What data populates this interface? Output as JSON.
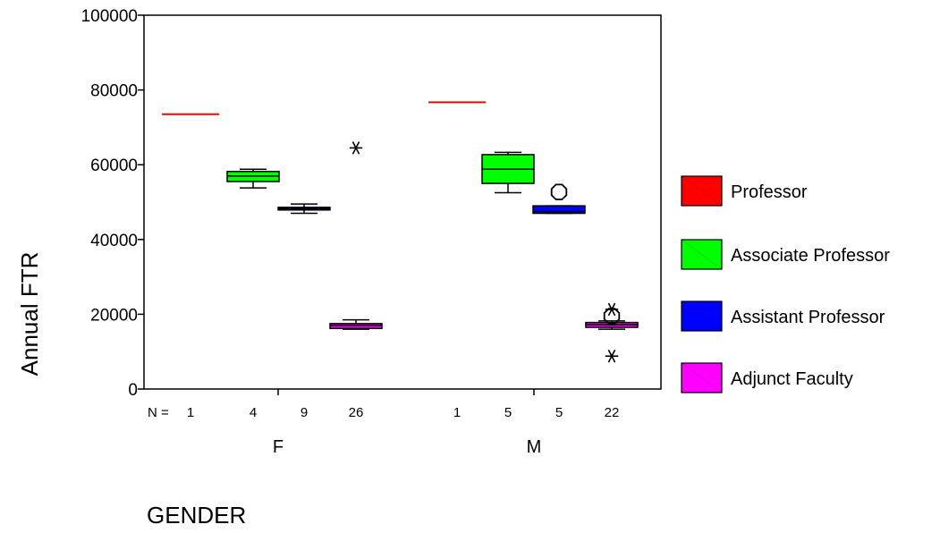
{
  "chart_data": {
    "type": "boxplot",
    "title": "",
    "xlabel": "GENDER",
    "ylabel": "Annual FTR",
    "ylim": [
      0,
      100000
    ],
    "yticks": [
      "0",
      "20000",
      "40000",
      "60000",
      "80000",
      "100000"
    ],
    "yticks_values": [
      0,
      20000,
      40000,
      60000,
      80000,
      100000
    ],
    "n_prefix": "N =",
    "legend_position": "right",
    "grid": false,
    "series": [
      {
        "name": "Professor",
        "color": "#ff0000"
      },
      {
        "name": "Associate Professor",
        "color": "#00ff00"
      },
      {
        "name": "Assistant Professor",
        "color": "#0000ff"
      },
      {
        "name": "Adjunct Faculty",
        "color": "#ff00ff"
      }
    ],
    "groups": [
      {
        "label": "F",
        "boxes": [
          {
            "series": "Professor",
            "n": "1",
            "median": 73500
          },
          {
            "series": "Associate Professor",
            "n": "4",
            "whisker_low": 53800,
            "q1": 55500,
            "median": 57000,
            "q3": 58200,
            "whisker_high": 58800
          },
          {
            "series": "Assistant Professor",
            "n": "9",
            "whisker_low": 47000,
            "q1": 47900,
            "median": 48300,
            "q3": 48600,
            "whisker_high": 49500
          },
          {
            "series": "Adjunct Faculty",
            "n": "26",
            "whisker_low": 16000,
            "q1": 16200,
            "median": 17000,
            "q3": 17500,
            "whisker_high": 18500,
            "outliers": [
              {
                "value": 64500,
                "kind": "extreme"
              }
            ]
          }
        ]
      },
      {
        "label": "M",
        "boxes": [
          {
            "series": "Professor",
            "n": "1",
            "median": 76700
          },
          {
            "series": "Associate Professor",
            "n": "5",
            "whisker_low": 52500,
            "q1": 55000,
            "median": 58800,
            "q3": 62700,
            "whisker_high": 63300
          },
          {
            "series": "Assistant Professor",
            "n": "5",
            "whisker_low": 47000,
            "q1": 47000,
            "median": 47500,
            "q3": 49000,
            "whisker_high": 49000,
            "outliers": [
              {
                "value": 52700,
                "kind": "outlier"
              }
            ]
          },
          {
            "series": "Adjunct Faculty",
            "n": "22",
            "whisker_low": 16000,
            "q1": 16500,
            "median": 17200,
            "q3": 17800,
            "whisker_high": 18200,
            "outliers": [
              {
                "value": 19500,
                "kind": "outlier"
              },
              {
                "value": 21300,
                "kind": "extreme"
              },
              {
                "value": 8800,
                "kind": "extreme"
              }
            ]
          }
        ]
      }
    ]
  }
}
